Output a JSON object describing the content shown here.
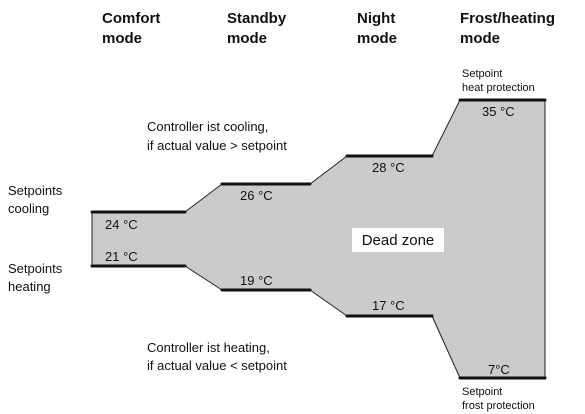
{
  "headers": [
    [
      "Comfort",
      "mode"
    ],
    [
      "Standby",
      "mode"
    ],
    [
      "Night",
      "mode"
    ],
    [
      "Frost/heating",
      "mode"
    ]
  ],
  "setpoints": {
    "cooling": [
      "24 °C",
      "26 °C",
      "28 °C",
      "35 °C"
    ],
    "heating": [
      "21 °C",
      "19 °C",
      "17 °C",
      "7°C"
    ]
  },
  "side_labels": {
    "cooling": [
      "Setpoints",
      "cooling"
    ],
    "heating": [
      "Setpoints",
      "heating"
    ]
  },
  "notes": {
    "cooling": [
      "Controller ist cooling,",
      "if actual value > setpoint"
    ],
    "heating": [
      "Controller ist heating,",
      "if actual value < setpoint"
    ],
    "heat_protection": [
      "Setpoint",
      "heat protection"
    ],
    "frost_protection": [
      "Setpoint",
      "frost protection"
    ]
  },
  "dead_zone": "Dead zone"
}
